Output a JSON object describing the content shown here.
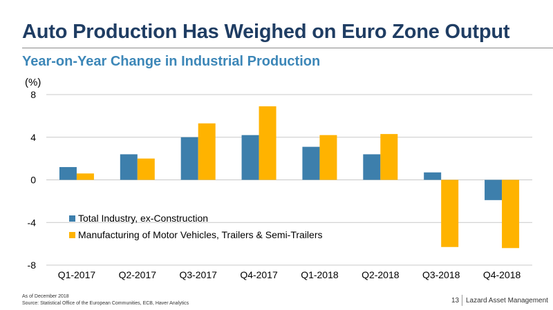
{
  "header": {
    "title": "Auto Production Has Weighed on Euro Zone Output",
    "subtitle": "Year-on-Year Change in Industrial Production"
  },
  "chart_data": {
    "type": "bar",
    "title": "Year-on-Year Change in Industrial Production",
    "ylabel": "(%)",
    "xlabel": "",
    "ylim": [
      -8,
      8
    ],
    "yticks": [
      8,
      4,
      0,
      -4,
      -8
    ],
    "grid": true,
    "legend": "bottom-left",
    "categories": [
      "Q1-2017",
      "Q2-2017",
      "Q3-2017",
      "Q4-2017",
      "Q1-2018",
      "Q2-2018",
      "Q3-2018",
      "Q4-2018"
    ],
    "series": [
      {
        "name": "Total Industry, ex-Construction",
        "color": "#3d7fac",
        "values": [
          1.2,
          2.4,
          4.0,
          4.2,
          3.1,
          2.4,
          0.7,
          -1.9
        ]
      },
      {
        "name": "Manufacturing of Motor Vehicles, Trailers & Semi-Trailers",
        "color": "#ffb300",
        "values": [
          0.6,
          2.0,
          5.3,
          6.9,
          4.2,
          4.3,
          -6.3,
          -6.4
        ]
      }
    ]
  },
  "footer": {
    "note": "As of December 2018",
    "source": "Source: Statistical Office of the European Communities, ECB, Haver Analytics",
    "page": "13",
    "brand": "Lazard Asset Management"
  }
}
